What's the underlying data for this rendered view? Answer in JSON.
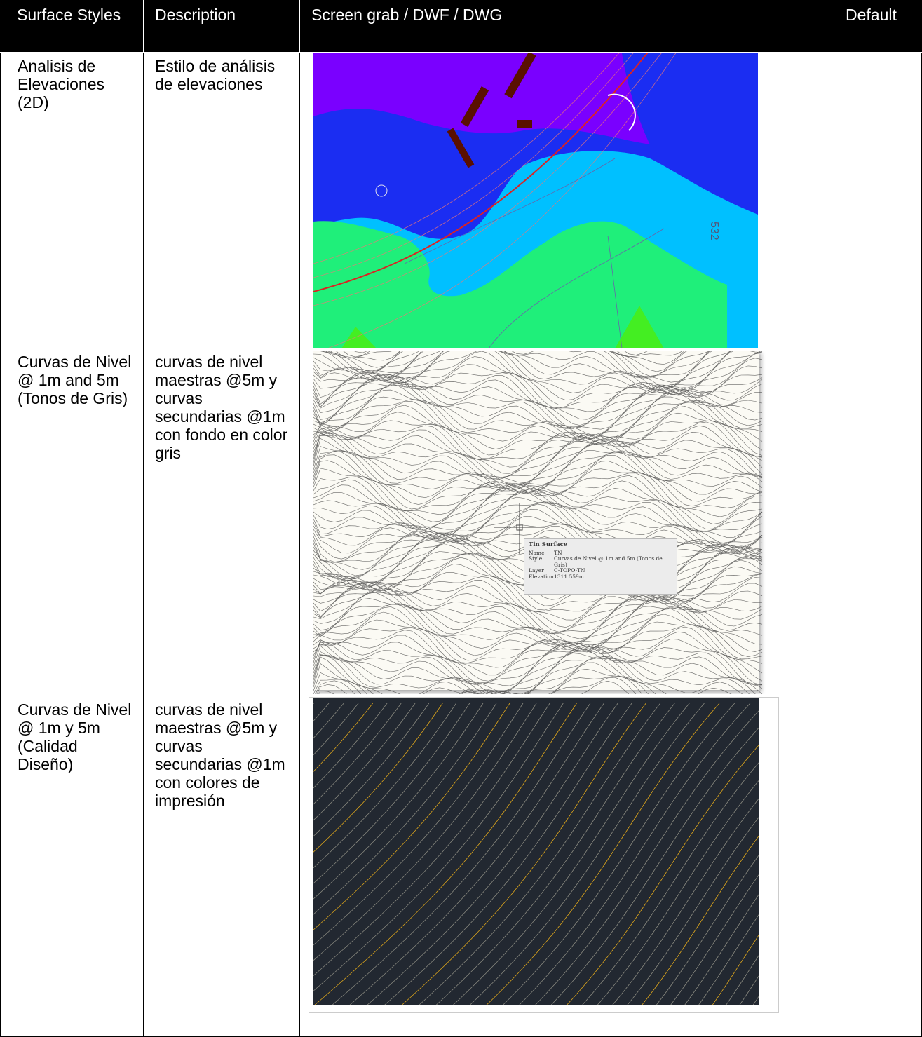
{
  "table": {
    "header": [
      "Surface Styles",
      "Description",
      "Screen grab / DWF / DWG",
      "Default"
    ],
    "rows": [
      {
        "style": "Analisis de Elevaciones (2D)",
        "description": "Estilo de análisis de elevaciones"
      },
      {
        "style": "Curvas de Nivel @ 1m and 5m (Tonos de Gris)",
        "description": "curvas de nivel maestras @5m y curvas secundarias @1m con fondo en color gris"
      },
      {
        "style": "Curvas de Nivel @ 1m y 5m (Calidad Diseño)",
        "description": "curvas de nivel maestras @5m y curvas secundarias @1m con colores de impresión"
      }
    ]
  },
  "tooltip": {
    "title": "Tin Surface",
    "fields": [
      [
        "Name",
        "TN"
      ],
      [
        "Style",
        "Curvas de Nivel @ 1m and 5m (Tonos de Gris)"
      ],
      [
        "Layer",
        "C-TOPO-TN"
      ],
      [
        "Elevation",
        "1311.559m"
      ]
    ]
  },
  "map_label": "532"
}
